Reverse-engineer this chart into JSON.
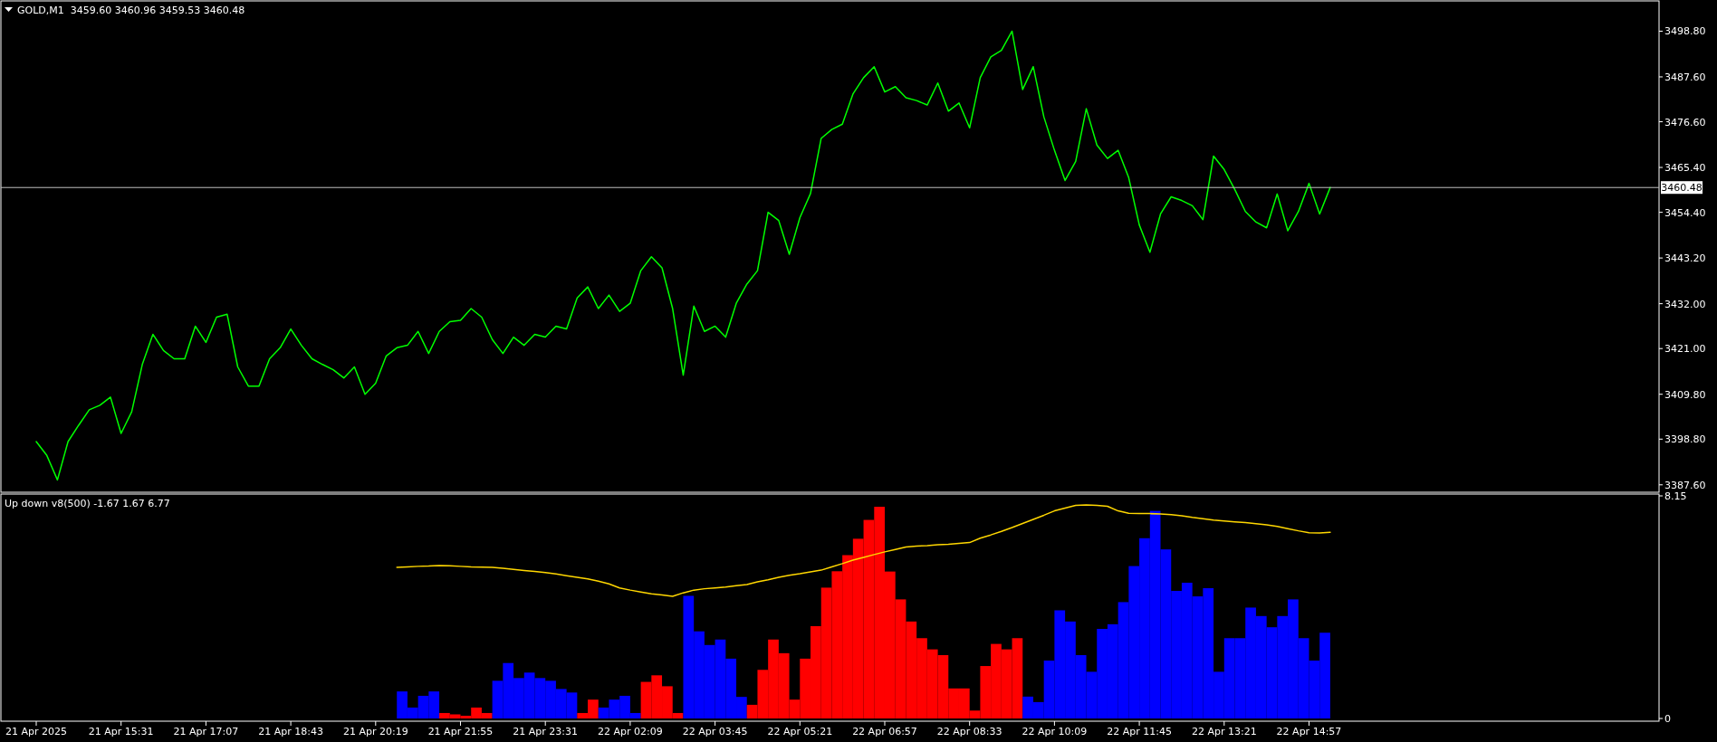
{
  "chart_data": [
    {
      "type": "line",
      "title": "GOLD,M1  3459.60 3460.96 3459.53 3460.48",
      "color": "#00ff00",
      "ylim": [
        3386,
        3506
      ],
      "tick_labels": "y",
      "categories": [
        null,
        null,
        null,
        null,
        null,
        null,
        null,
        null,
        null,
        null,
        null,
        null,
        null,
        null,
        null,
        null,
        null,
        null,
        null,
        null,
        null,
        null,
        null,
        null,
        null,
        null,
        null,
        null,
        null,
        null,
        null,
        null,
        null,
        null,
        null,
        null,
        null,
        null,
        null,
        null,
        null,
        null,
        null,
        null,
        null,
        null,
        null,
        null,
        null,
        null,
        null,
        null,
        null,
        null,
        null,
        null,
        null,
        null,
        null,
        null,
        null,
        null,
        null,
        null,
        null,
        null,
        null,
        null,
        null,
        null,
        null,
        null,
        null,
        null,
        null,
        null,
        null,
        null,
        null,
        null,
        null,
        null,
        null,
        null,
        null,
        null,
        null,
        null,
        null,
        null,
        null,
        null,
        null,
        null,
        null,
        null,
        null,
        null,
        null,
        null,
        null,
        null,
        null,
        null,
        null,
        null,
        null,
        null,
        null,
        null,
        null,
        null,
        null,
        null,
        null,
        null,
        null,
        null,
        null,
        null,
        null,
        null,
        null,
        null,
        null,
        null,
        null,
        null,
        null,
        null,
        null,
        null,
        null,
        null,
        null,
        null,
        null,
        null,
        null,
        null,
        null,
        null,
        null,
        null,
        null,
        null,
        null,
        null,
        null,
        null,
        null,
        null,
        null
      ],
      "yticks": [
        {
          "value": 3498.8,
          "label": "3498.80"
        },
        {
          "value": 3487.6,
          "label": "3487.60"
        },
        {
          "value": 3476.6,
          "label": "3476.60"
        },
        {
          "value": 3465.4,
          "label": "3465.40"
        },
        {
          "value": 3454.4,
          "label": "3454.40"
        },
        {
          "value": 3443.2,
          "label": "3443.20"
        },
        {
          "value": 3432,
          "label": "3432.00"
        },
        {
          "value": 3421,
          "label": "3421.00"
        },
        {
          "value": 3409.8,
          "label": "3409.80"
        },
        {
          "value": 3398.8,
          "label": "3398.80"
        },
        {
          "value": 3387.6,
          "label": "3387.60"
        }
      ],
      "ref_lines": [
        {
          "axis": "y",
          "value": 3460.48,
          "label": "3460.48",
          "color": "#c0c0c0"
        }
      ],
      "values": [
        3398.2,
        3394.8,
        3388.8,
        3398.2,
        3402.2,
        3406,
        3407.1,
        3409.1,
        3400.2,
        3405.5,
        3417.1,
        3424.5,
        3420.5,
        3418.5,
        3418.5,
        3426.5,
        3422.5,
        3428.7,
        3429.4,
        3416.5,
        3411.8,
        3411.8,
        3418.5,
        3421.2,
        3425.8,
        3421.8,
        3418.5,
        3417.1,
        3415.8,
        3413.8,
        3416.5,
        3409.8,
        3412.5,
        3419.2,
        3421.2,
        3421.8,
        3425.2,
        3419.8,
        3425.2,
        3427.6,
        3427.9,
        3430.8,
        3428.7,
        3423.2,
        3419.8,
        3423.8,
        3421.8,
        3424.5,
        3423.8,
        3426.5,
        3425.8,
        3433.4,
        3436.1,
        3430.8,
        3434.1,
        3430.1,
        3432.1,
        3440.1,
        3443.5,
        3440.8,
        3430.8,
        3414.5,
        3431.4,
        3425.2,
        3426.5,
        3423.8,
        3432.1,
        3436.8,
        3440.1,
        3454.4,
        3452.4,
        3444.1,
        3453.1,
        3459,
        3472.5,
        3474.7,
        3476.0,
        3483.4,
        3487.4,
        3490.1,
        3483.9,
        3485.2,
        3482.5,
        3481.8,
        3480.7,
        3486.1,
        3479.2,
        3481.2,
        3475.1,
        3487.4,
        3492.5,
        3494.1,
        3498.8,
        3484.5,
        3490.1,
        3477.8,
        3469.6,
        3462.2,
        3466.9,
        3479.8,
        3470.9,
        3467.6,
        3469.6,
        3462.9,
        3451.3,
        3444.6,
        3454.0,
        3458.2,
        3457.3,
        3456.0,
        3452.6,
        3468.2,
        3464.9,
        3460,
        3454.6,
        3452,
        3450.6,
        3458.9,
        3449.9,
        3454.6,
        3461.5,
        3454.0,
        3460.5,
        null,
        null,
        null,
        null,
        null,
        null,
        null,
        null,
        null,
        null,
        null,
        null,
        null,
        null,
        null,
        null,
        null,
        null,
        null,
        null,
        null,
        null,
        null,
        null,
        null,
        null,
        null,
        null,
        null,
        null
      ]
    },
    {
      "type": "bar",
      "title": "Up down v8(500) -1.67 1.67 6.77",
      "ylim": [
        0,
        8.15
      ],
      "yticks": [
        8.15,
        0
      ],
      "categories": [
        "21 Apr 2025",
        null,
        null,
        null,
        null,
        null,
        null,
        null,
        "21 Apr 15:31",
        null,
        null,
        null,
        null,
        null,
        null,
        null,
        "21 Apr 17:07",
        null,
        null,
        null,
        null,
        null,
        null,
        null,
        "21 Apr 18:43",
        null,
        null,
        null,
        null,
        null,
        null,
        null,
        "21 Apr 20:19",
        null,
        null,
        null,
        null,
        null,
        null,
        null,
        "21 Apr 21:55",
        null,
        null,
        null,
        null,
        null,
        null,
        null,
        "21 Apr 23:31",
        null,
        null,
        null,
        null,
        null,
        null,
        null,
        "22 Apr 02:09",
        null,
        null,
        null,
        null,
        null,
        null,
        null,
        "22 Apr 03:45",
        null,
        null,
        null,
        null,
        null,
        null,
        null,
        "22 Apr 05:21",
        null,
        null,
        null,
        null,
        null,
        null,
        null,
        "22 Apr 06:57",
        null,
        null,
        null,
        null,
        null,
        null,
        null,
        "22 Apr 08:33",
        null,
        null,
        null,
        null,
        null,
        null,
        null,
        "22 Apr 10:09",
        null,
        null,
        null,
        null,
        null,
        null,
        null,
        "22 Apr 11:45",
        null,
        null,
        null,
        null,
        null,
        null,
        null,
        "22 Apr 13:21",
        null,
        null,
        null,
        null,
        null,
        null,
        null,
        "22 Apr 14:57",
        null,
        null,
        null,
        null,
        null,
        null,
        null,
        null,
        null,
        null,
        null,
        null,
        null,
        null,
        null,
        null,
        null,
        null,
        null,
        null,
        null,
        null,
        null,
        null,
        null,
        null,
        null,
        null,
        null,
        null,
        null,
        null
      ],
      "series": [
        {
          "values": [
            null,
            null,
            null,
            null,
            null,
            null,
            null,
            null,
            null,
            null,
            null,
            null,
            null,
            null,
            null,
            null,
            null,
            null,
            null,
            null,
            null,
            null,
            null,
            null,
            null,
            null,
            null,
            null,
            null,
            null,
            null,
            null,
            null,
            null,
            0.99,
            0.4,
            0.83,
            0.99,
            0.2,
            0.15,
            0.1,
            0.4,
            0.2,
            1.38,
            2.03,
            1.48,
            1.68,
            1.48,
            1.38,
            1.08,
            0.95,
            0.2,
            0.69,
            0.4,
            0.69,
            0.83,
            0.2,
            1.34,
            1.58,
            1.18,
            0.2,
            4.49,
            3.19,
            2.69,
            2.89,
            2.19,
            0.79,
            0.5,
            1.78,
            2.89,
            2.39,
            0.69,
            2.19,
            3.38,
            4.79,
            5.39,
            5.98,
            6.58,
            7.27,
            7.75,
            5.38,
            4.36,
            3.55,
            2.94,
            2.53,
            2.32,
            1.1,
            1.1,
            0.29,
            1.92,
            2.73,
            2.53,
            2.94,
            0.8,
            0.6,
            2.12,
            3.96,
            3.55,
            2.32,
            1.71,
            3.28,
            3.45,
            4.26,
            5.58,
            6.6,
            7.6,
            6.19,
            4.67,
            4.97,
            4.47,
            4.77,
            1.71,
            2.94,
            2.94,
            4.06,
            3.75,
            3.34,
            3.75,
            4.36,
            2.94,
            2.12,
            3.14,
            null,
            null,
            null,
            null,
            null,
            null,
            null,
            null,
            null,
            null,
            null,
            null,
            null,
            null,
            null,
            null,
            null,
            null,
            null,
            null,
            null,
            null,
            null,
            null,
            null,
            null,
            null,
            null,
            null,
            null,
            null
          ],
          "colors": [
            null,
            null,
            null,
            null,
            null,
            null,
            null,
            null,
            null,
            null,
            null,
            null,
            null,
            null,
            null,
            null,
            null,
            null,
            null,
            null,
            null,
            null,
            null,
            null,
            null,
            null,
            null,
            null,
            null,
            null,
            null,
            null,
            null,
            null,
            "#0000ff",
            "#0000ff",
            "#0000ff",
            "#0000ff",
            "#ff0000",
            "#ff0000",
            "#ff0000",
            "#ff0000",
            "#ff0000",
            "#0000ff",
            "#0000ff",
            "#0000ff",
            "#0000ff",
            "#0000ff",
            "#0000ff",
            "#0000ff",
            "#0000ff",
            "#ff0000",
            "#ff0000",
            "#0000ff",
            "#0000ff",
            "#0000ff",
            "#0000ff",
            "#ff0000",
            "#ff0000",
            "#ff0000",
            "#ff0000",
            "#0000ff",
            "#0000ff",
            "#0000ff",
            "#0000ff",
            "#0000ff",
            "#0000ff",
            "#ff0000",
            "#ff0000",
            "#ff0000",
            "#ff0000",
            "#ff0000",
            "#ff0000",
            "#ff0000",
            "#ff0000",
            "#ff0000",
            "#ff0000",
            "#ff0000",
            "#ff0000",
            "#ff0000",
            "#ff0000",
            "#ff0000",
            "#ff0000",
            "#ff0000",
            "#ff0000",
            "#ff0000",
            "#ff0000",
            "#ff0000",
            "#ff0000",
            "#ff0000",
            "#ff0000",
            "#ff0000",
            "#ff0000",
            "#0000ff",
            "#0000ff",
            "#0000ff",
            "#0000ff",
            "#0000ff",
            "#0000ff",
            "#0000ff",
            "#0000ff",
            "#0000ff",
            "#0000ff",
            "#0000ff",
            "#0000ff",
            "#0000ff",
            "#0000ff",
            "#0000ff",
            "#0000ff",
            "#0000ff",
            "#0000ff",
            "#0000ff",
            "#0000ff",
            "#0000ff",
            "#0000ff",
            "#0000ff",
            "#0000ff",
            "#0000ff",
            "#0000ff",
            "#0000ff",
            "#0000ff",
            "#0000ff",
            null,
            null,
            null,
            null,
            null,
            null,
            null,
            null,
            null,
            null,
            null,
            null,
            null,
            null,
            null,
            null,
            null,
            null,
            null,
            null,
            null,
            null,
            null,
            null,
            null,
            null,
            null,
            null,
            null,
            null,
            null
          ]
        },
        {
          "type": "line",
          "color": "#ffd700",
          "values": [
            null,
            null,
            null,
            null,
            null,
            null,
            null,
            null,
            null,
            null,
            null,
            null,
            null,
            null,
            null,
            null,
            null,
            null,
            null,
            null,
            null,
            null,
            null,
            null,
            null,
            null,
            null,
            null,
            null,
            null,
            null,
            null,
            null,
            null,
            5.53,
            5.55,
            5.57,
            5.58,
            5.6,
            5.59,
            5.57,
            5.55,
            5.54,
            5.53,
            5.5,
            5.46,
            5.42,
            5.38,
            5.34,
            5.29,
            5.23,
            5.17,
            5.11,
            5.03,
            4.93,
            4.78,
            4.7,
            4.63,
            4.56,
            4.52,
            4.47,
            4.6,
            4.7,
            4.75,
            4.78,
            4.81,
            4.86,
            4.9,
            5.0,
            5.08,
            5.17,
            5.24,
            5.3,
            5.37,
            5.43,
            5.55,
            5.67,
            5.8,
            5.9,
            6.0,
            6.1,
            6.19,
            6.28,
            6.31,
            6.33,
            6.36,
            6.38,
            6.41,
            6.44,
            6.6,
            6.72,
            6.85,
            6.99,
            7.14,
            7.29,
            7.44,
            7.6,
            7.7,
            7.8,
            7.82,
            7.8,
            7.77,
            7.6,
            7.51,
            7.5,
            7.5,
            7.49,
            7.46,
            7.42,
            7.36,
            7.31,
            7.26,
            7.23,
            7.2,
            7.17,
            7.13,
            7.09,
            7.03,
            6.95,
            6.87,
            6.8,
            6.79,
            6.82,
            null,
            null,
            null,
            null,
            null,
            null,
            null,
            null,
            null,
            null,
            null,
            null,
            null,
            null,
            null,
            null,
            null,
            null,
            null,
            null,
            null,
            null,
            null,
            null,
            null,
            null,
            null,
            null,
            null,
            null
          ]
        }
      ]
    }
  ]
}
